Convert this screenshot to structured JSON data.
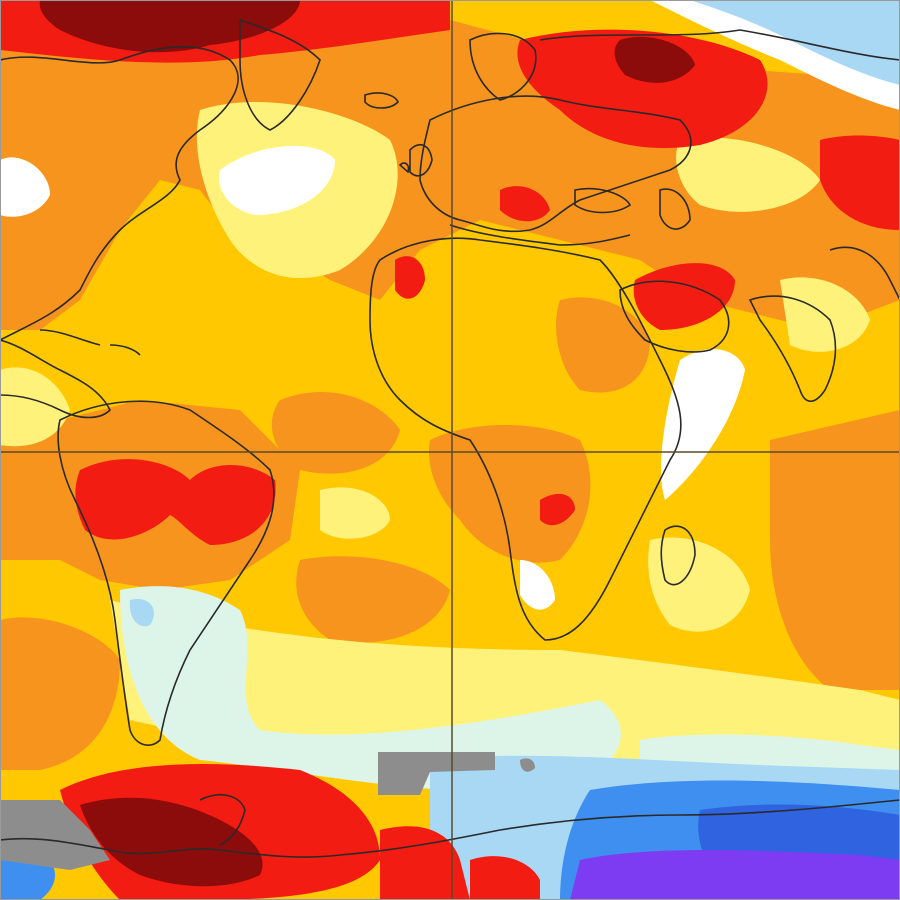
{
  "map": {
    "colors": {
      "base": "#ffc800",
      "orange": "#f7941d",
      "red": "#f21c12",
      "darkred": "#8c0b0b",
      "paleyellow": "#fff27a",
      "white": "#ffffff",
      "mint": "#ddf5e8",
      "lightblue": "#a9d8f5",
      "blue": "#3f8ff0",
      "darkblue": "#2f63e0",
      "violet": "#7d3cf2",
      "gray": "#8d8d8d",
      "coast": "#2a2a2a",
      "gridline": "#5a4a2a"
    },
    "features": {
      "gridlines": [
        "equator",
        "prime-meridian"
      ],
      "nodata": "gray"
    }
  }
}
